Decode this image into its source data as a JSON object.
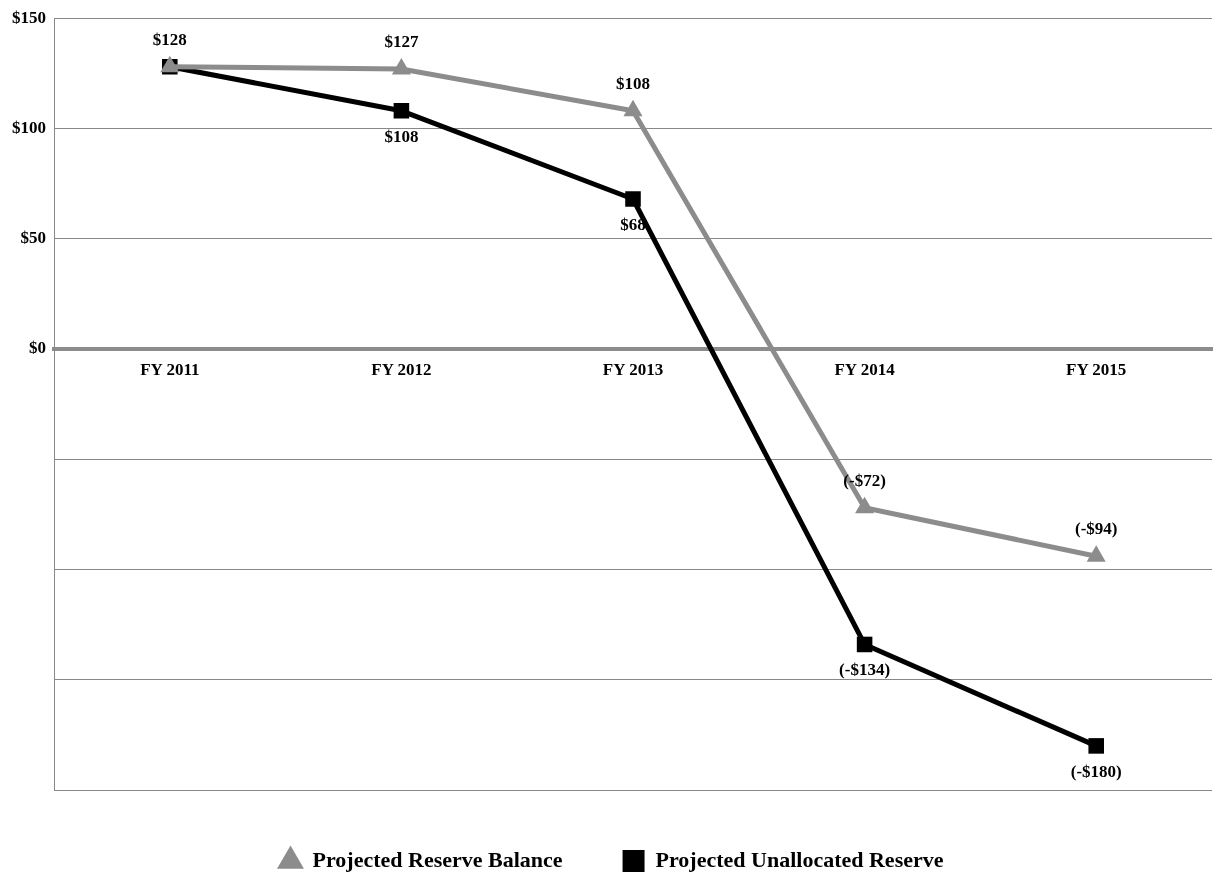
{
  "chart_data": {
    "type": "line",
    "categories": [
      "FY 2011",
      "FY 2012",
      "FY 2013",
      "FY 2014",
      "FY 2015"
    ],
    "series": [
      {
        "name": "Projected Reserve Balance",
        "color": "#8c8c8c",
        "marker": "triangle",
        "values": [
          128,
          127,
          108,
          -72,
          -94
        ],
        "value_labels": [
          null,
          "$127",
          "$108",
          "(-$72)",
          "(-$94)"
        ]
      },
      {
        "name": "Projected Unallocated Reserve",
        "color": "#000000",
        "marker": "square",
        "values": [
          128,
          108,
          68,
          -134,
          -180
        ],
        "value_labels": [
          "$128",
          "$108",
          "$68",
          "(-$134)",
          "(-$180)"
        ]
      }
    ],
    "ylim": [
      -200,
      150
    ],
    "yticks": [
      {
        "value": 150,
        "label": "$150"
      },
      {
        "value": 100,
        "label": "$100"
      },
      {
        "value": 50,
        "label": "$50"
      },
      {
        "value": 0,
        "label": "$0"
      },
      {
        "value": -50,
        "label": null
      },
      {
        "value": -100,
        "label": null
      },
      {
        "value": -150,
        "label": null
      },
      {
        "value": -200,
        "label": null
      }
    ],
    "grid": "y",
    "legend": "bottom"
  }
}
